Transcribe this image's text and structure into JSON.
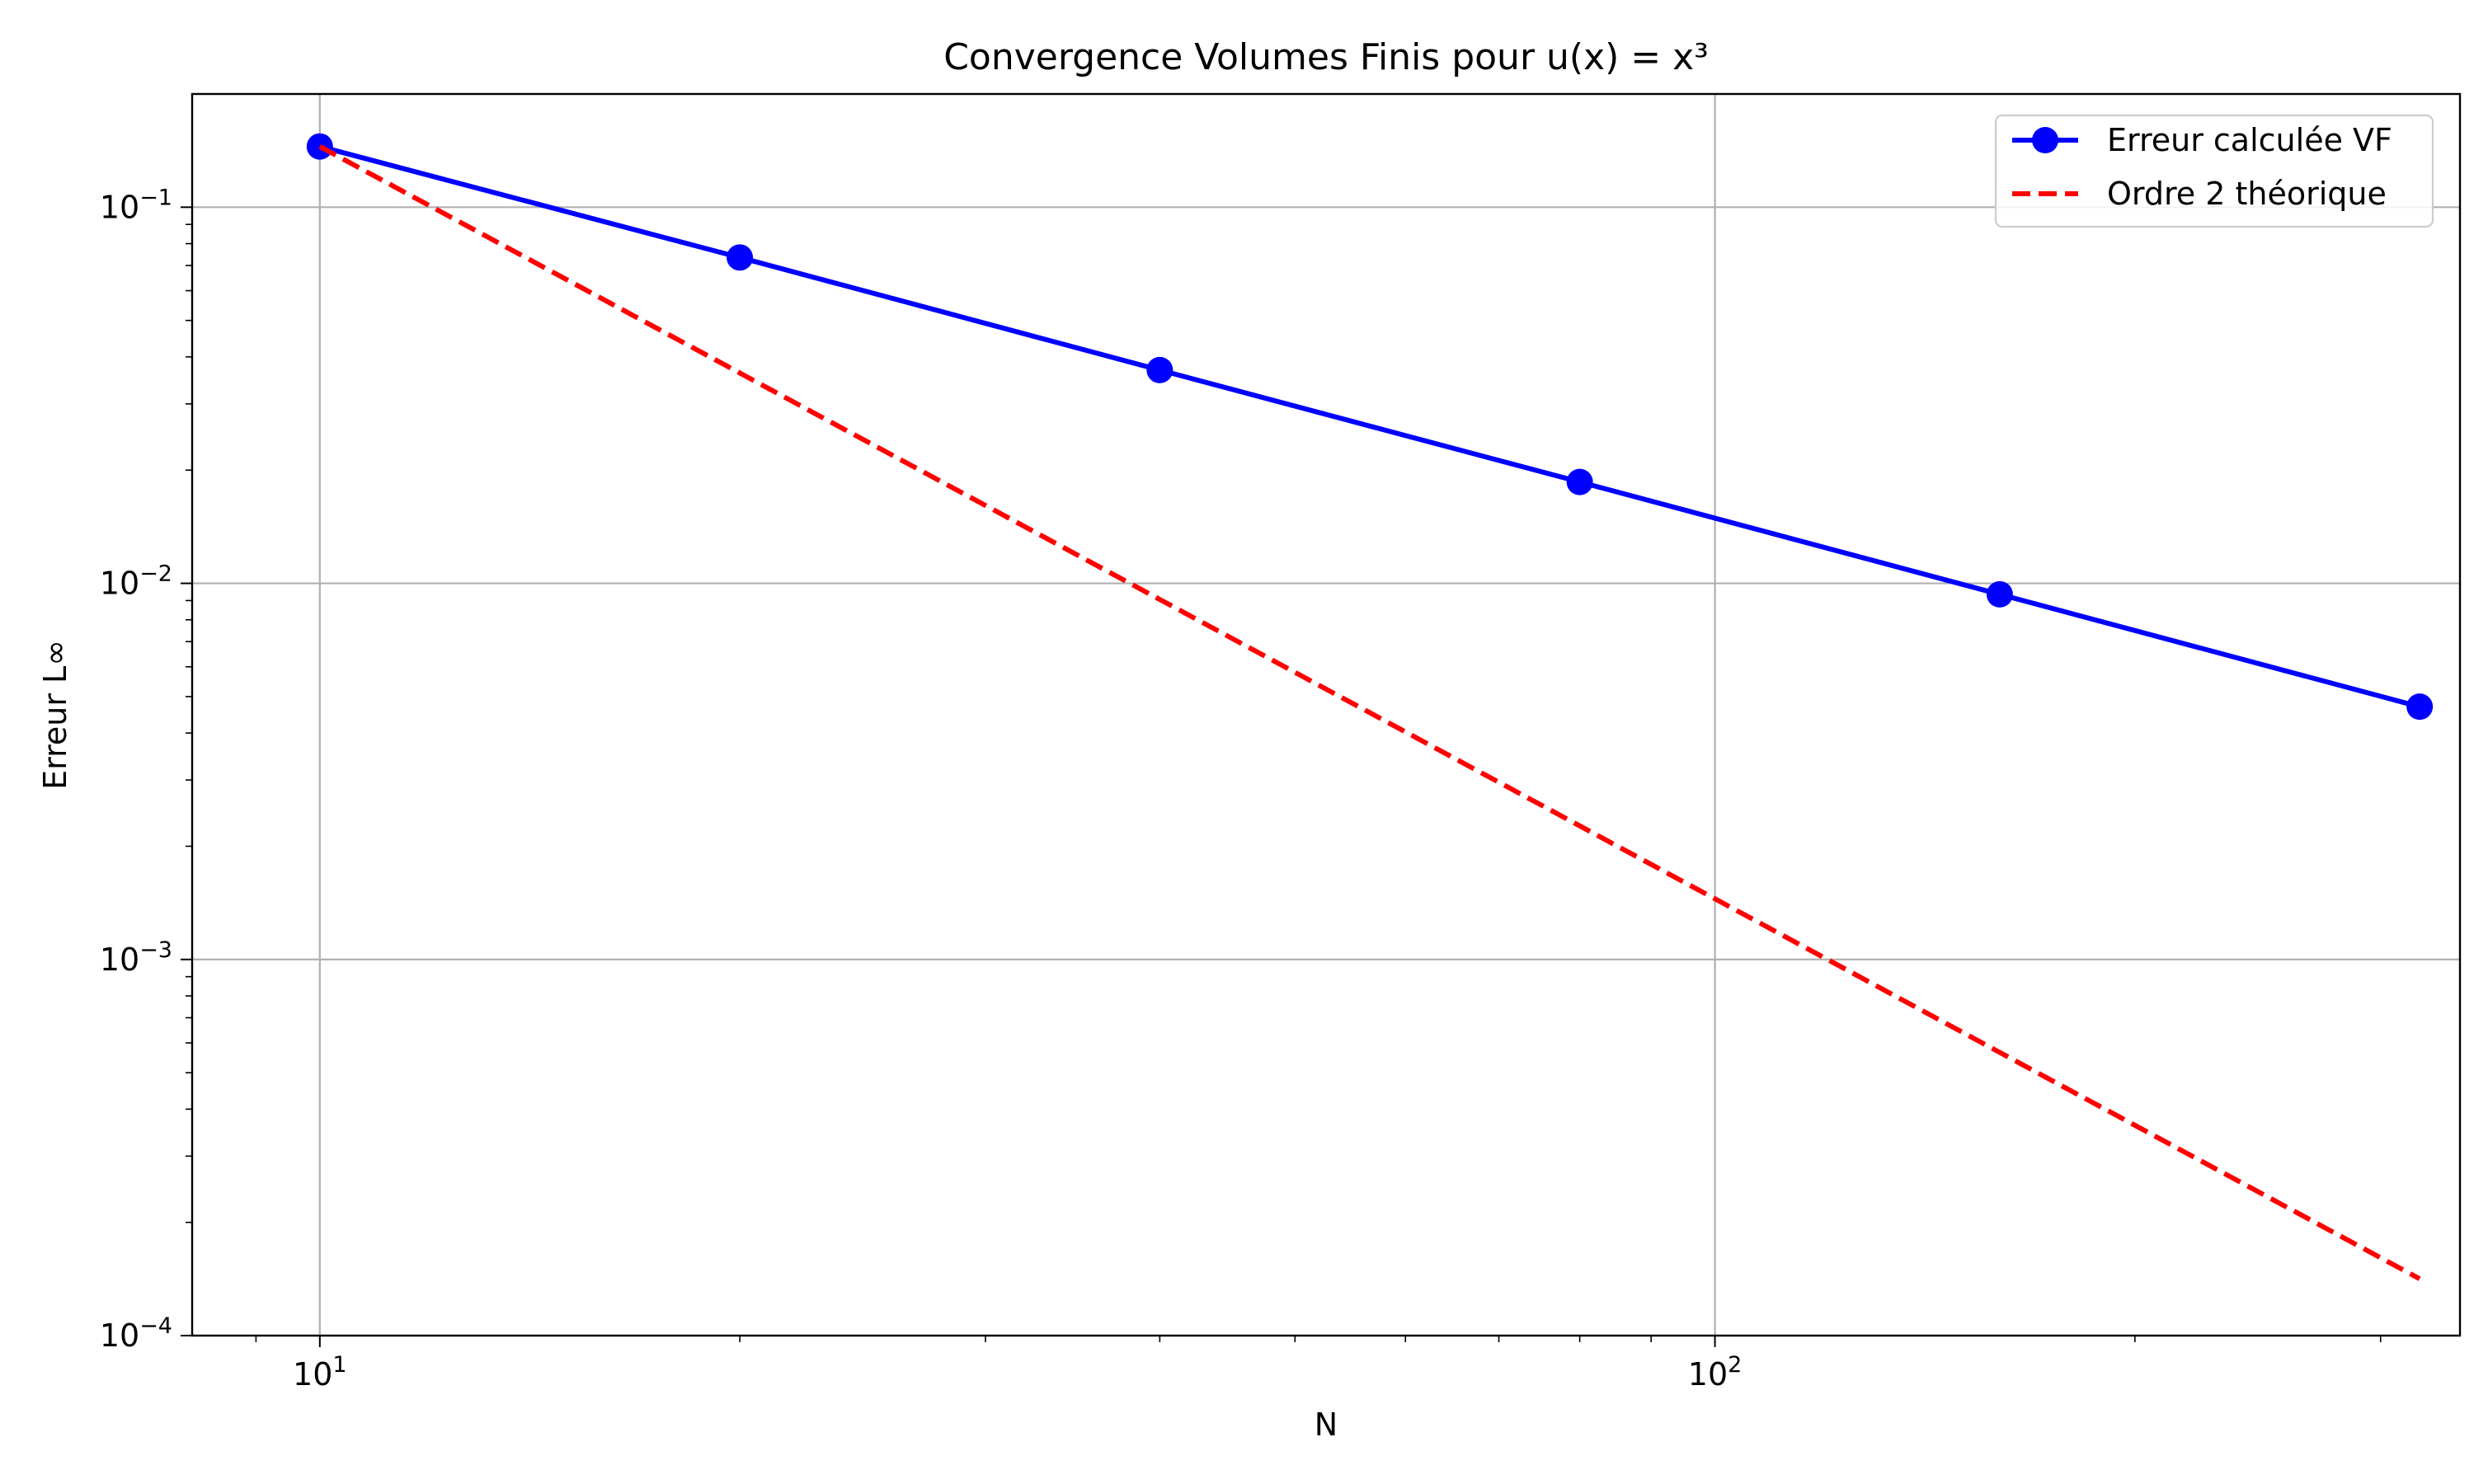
{
  "chart_data": {
    "type": "line",
    "title": "Convergence Volumes Finis pour u(x) = x³",
    "xlabel": "N",
    "ylabel": "Erreur L∞",
    "xscale": "log",
    "yscale": "log",
    "xlim": [
      8.1,
      342
    ],
    "ylim": [
      0.0001,
      0.2
    ],
    "grid": true,
    "legend_position": "top-right",
    "x_ticks": [
      {
        "value": 10,
        "base": "10",
        "exp": "1"
      },
      {
        "value": 100,
        "base": "10",
        "exp": "2"
      }
    ],
    "y_ticks": [
      {
        "value": 0.1,
        "base": "10",
        "exp": "−1"
      },
      {
        "value": 0.01,
        "base": "10",
        "exp": "−2"
      },
      {
        "value": 0.001,
        "base": "10",
        "exp": "−3"
      },
      {
        "value": 0.0001,
        "base": "10",
        "exp": "−4"
      }
    ],
    "series": [
      {
        "name": "Erreur calculée VF",
        "color": "#0000ff",
        "style": "solid",
        "marker": "circle",
        "x": [
          10,
          20,
          40,
          80,
          160,
          320
        ],
        "y": [
          0.145,
          0.0735,
          0.0369,
          0.0186,
          0.00935,
          0.0047
        ]
      },
      {
        "name": "Ordre 2 théorique",
        "color": "#ff0000",
        "style": "dashed",
        "marker": "none",
        "x": [
          10,
          20,
          40,
          80,
          160,
          320
        ],
        "y": [
          0.145,
          0.03625,
          0.00906,
          0.002266,
          0.000566,
          0.0001416
        ]
      }
    ]
  }
}
